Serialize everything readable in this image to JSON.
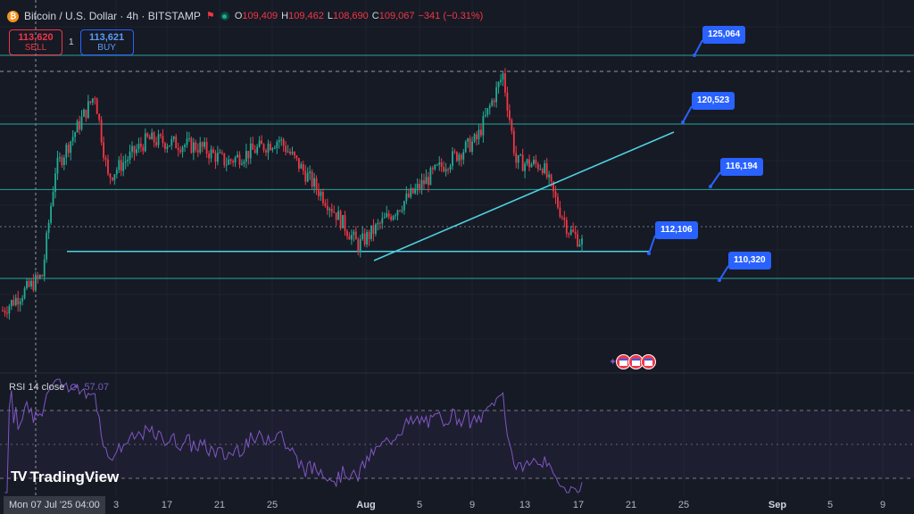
{
  "header": {
    "symbol": "Bitcoin / U.S. Dollar · 4h · BITSTAMP",
    "ohlc": [
      {
        "k": "O",
        "v": "109,409"
      },
      {
        "k": "H",
        "v": "109,462"
      },
      {
        "k": "L",
        "v": "108,690"
      },
      {
        "k": "C",
        "v": "109,067"
      }
    ],
    "change": "−341 (−0.31%)"
  },
  "trade": {
    "sell_price": "113,620",
    "sell_label": "SELL",
    "qty": "1",
    "buy_price": "113,621",
    "buy_label": "BUY"
  },
  "price_labels": [
    "125,064",
    "120,523",
    "116,194",
    "112,106",
    "110,320"
  ],
  "rsi": {
    "title": "RSI 14 close",
    "value": "57.07"
  },
  "brand": {
    "name": "TradingView"
  },
  "xaxis": {
    "cursor_label": "Mon 07 Jul '25   04:00",
    "ticks": [
      {
        "label": "3",
        "bold": false
      },
      {
        "label": "17",
        "bold": false
      },
      {
        "label": "21",
        "bold": false
      },
      {
        "label": "25",
        "bold": false
      },
      {
        "label": "Aug",
        "bold": true
      },
      {
        "label": "5",
        "bold": false
      },
      {
        "label": "9",
        "bold": false
      },
      {
        "label": "13",
        "bold": false
      },
      {
        "label": "17",
        "bold": false
      },
      {
        "label": "21",
        "bold": false
      },
      {
        "label": "25",
        "bold": false
      },
      {
        "label": "Sep",
        "bold": true
      },
      {
        "label": "5",
        "bold": false
      },
      {
        "label": "9",
        "bold": false
      }
    ]
  },
  "colors": {
    "up": "#22ab94",
    "down": "#f23645",
    "hline": "#26a69a",
    "trend": "#4dd0e1",
    "rsi": "#7e57c2",
    "label": "#2962ff"
  },
  "chart_data": {
    "type": "candlestick",
    "interval": "4h",
    "levels": [
      125064,
      120523,
      116194,
      112106,
      110320
    ],
    "price_path": [
      [
        "07 Jul",
        108200
      ],
      [
        "10 Jul",
        110500
      ],
      [
        "11 Jul",
        117500
      ],
      [
        "14 Jul",
        122500
      ],
      [
        "15 Jul",
        117000
      ],
      [
        "18 Jul",
        119500
      ],
      [
        "22 Jul",
        119000
      ],
      [
        "24 Jul",
        118000
      ],
      [
        "28 Jul",
        119500
      ],
      [
        "01 Aug",
        115000
      ],
      [
        "03 Aug",
        112500
      ],
      [
        "06 Aug",
        115000
      ],
      [
        "09 Aug",
        117500
      ],
      [
        "12 Aug",
        119500
      ],
      [
        "14 Aug",
        123800
      ],
      [
        "15 Aug",
        118000
      ],
      [
        "17 Aug",
        117800
      ],
      [
        "18 Aug",
        115500
      ],
      [
        "19 Aug",
        113500
      ],
      [
        "20 Aug",
        112700
      ]
    ],
    "rsi_current": 57.07
  }
}
